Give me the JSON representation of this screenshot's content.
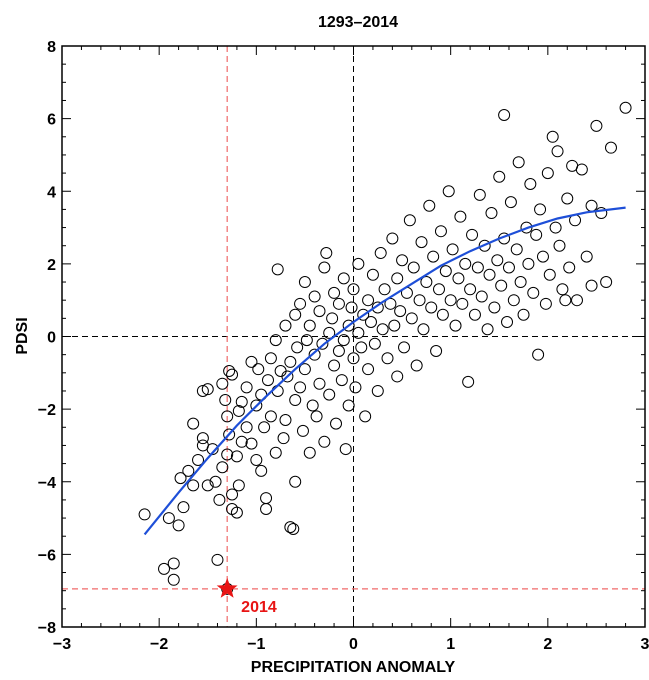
{
  "chart_data": {
    "type": "scatter",
    "title": "1293–2014",
    "xlabel": "PRECIPITATION ANOMALY",
    "ylabel": "PDSI",
    "xlim": [
      -3,
      3
    ],
    "ylim": [
      -8,
      8
    ],
    "x_ticks": [
      "−3",
      "−2",
      "−1",
      "0",
      "1",
      "2",
      "3"
    ],
    "y_ticks": [
      "−8",
      "−6",
      "−4",
      "−2",
      "0",
      "2",
      "4",
      "6",
      "8"
    ],
    "grid": false,
    "marker": "open-circle",
    "series": [
      {
        "points": [
          [
            -2.15,
            -4.9
          ],
          [
            -1.95,
            -6.4
          ],
          [
            -1.85,
            -6.7
          ],
          [
            -1.85,
            -6.25
          ],
          [
            -1.9,
            -5.0
          ],
          [
            -1.8,
            -5.2
          ],
          [
            -1.75,
            -4.7
          ],
          [
            -1.78,
            -3.9
          ],
          [
            -1.7,
            -3.7
          ],
          [
            -1.65,
            -4.1
          ],
          [
            -1.6,
            -3.4
          ],
          [
            -1.65,
            -2.4
          ],
          [
            -1.55,
            -3.0
          ],
          [
            -1.55,
            -2.8
          ],
          [
            -1.5,
            -1.45
          ],
          [
            -1.55,
            -1.5
          ],
          [
            -1.45,
            -3.1
          ],
          [
            -1.5,
            -4.1
          ],
          [
            -1.42,
            -4.0
          ],
          [
            -1.4,
            -6.15
          ],
          [
            -1.3,
            -6.95
          ],
          [
            -1.38,
            -4.5
          ],
          [
            -1.35,
            -3.6
          ],
          [
            -1.3,
            -3.25
          ],
          [
            -1.35,
            -1.3
          ],
          [
            -1.32,
            -1.75
          ],
          [
            -1.28,
            -0.95
          ],
          [
            -1.25,
            -1.05
          ],
          [
            -1.28,
            -2.7
          ],
          [
            -1.3,
            -2.2
          ],
          [
            -1.25,
            -4.35
          ],
          [
            -1.25,
            -4.75
          ],
          [
            -1.2,
            -4.85
          ],
          [
            -1.18,
            -4.1
          ],
          [
            -1.2,
            -3.3
          ],
          [
            -1.15,
            -2.9
          ],
          [
            -1.18,
            -2.05
          ],
          [
            -1.15,
            -1.8
          ],
          [
            -1.1,
            -2.5
          ],
          [
            -1.1,
            -1.4
          ],
          [
            -1.05,
            -0.7
          ],
          [
            -1.05,
            -2.95
          ],
          [
            -1.0,
            -3.4
          ],
          [
            -1.0,
            -1.9
          ],
          [
            -0.98,
            -0.9
          ],
          [
            -0.95,
            -1.6
          ],
          [
            -0.95,
            -3.7
          ],
          [
            -0.9,
            -4.45
          ],
          [
            -0.9,
            -4.75
          ],
          [
            -0.92,
            -2.5
          ],
          [
            -0.88,
            -1.2
          ],
          [
            -0.85,
            -0.6
          ],
          [
            -0.85,
            -2.2
          ],
          [
            -0.8,
            -0.1
          ],
          [
            -0.8,
            -3.2
          ],
          [
            -0.78,
            -1.5
          ],
          [
            -0.78,
            1.85
          ],
          [
            -0.75,
            -0.95
          ],
          [
            -0.72,
            -2.8
          ],
          [
            -0.7,
            -2.3
          ],
          [
            -0.7,
            0.3
          ],
          [
            -0.68,
            -1.1
          ],
          [
            -0.65,
            -0.7
          ],
          [
            -0.65,
            -5.25
          ],
          [
            -0.62,
            -5.3
          ],
          [
            -0.6,
            -4.0
          ],
          [
            -0.6,
            -1.75
          ],
          [
            -0.6,
            0.6
          ],
          [
            -0.58,
            -0.3
          ],
          [
            -0.55,
            0.9
          ],
          [
            -0.55,
            -1.4
          ],
          [
            -0.52,
            -2.6
          ],
          [
            -0.5,
            -0.9
          ],
          [
            -0.5,
            1.5
          ],
          [
            -0.48,
            -0.1
          ],
          [
            -0.45,
            -3.2
          ],
          [
            -0.45,
            0.3
          ],
          [
            -0.42,
            -1.9
          ],
          [
            -0.4,
            -0.5
          ],
          [
            -0.4,
            1.1
          ],
          [
            -0.38,
            -2.2
          ],
          [
            -0.35,
            0.7
          ],
          [
            -0.35,
            -1.3
          ],
          [
            -0.32,
            -0.2
          ],
          [
            -0.3,
            1.9
          ],
          [
            -0.3,
            -2.9
          ],
          [
            -0.28,
            2.3
          ],
          [
            -0.25,
            0.1
          ],
          [
            -0.25,
            -1.6
          ],
          [
            -0.22,
            0.5
          ],
          [
            -0.2,
            -0.8
          ],
          [
            -0.2,
            1.2
          ],
          [
            -0.18,
            -2.4
          ],
          [
            -0.15,
            -0.4
          ],
          [
            -0.15,
            0.9
          ],
          [
            -0.12,
            -1.2
          ],
          [
            -0.1,
            1.6
          ],
          [
            -0.1,
            -0.1
          ],
          [
            -0.08,
            -3.1
          ],
          [
            -0.05,
            0.3
          ],
          [
            -0.05,
            -1.9
          ],
          [
            -0.02,
            0.8
          ],
          [
            0.0,
            -0.6
          ],
          [
            0.0,
            1.3
          ],
          [
            0.02,
            -1.4
          ],
          [
            0.05,
            0.1
          ],
          [
            0.05,
            2.0
          ],
          [
            0.08,
            -0.3
          ],
          [
            0.1,
            0.6
          ],
          [
            0.12,
            -2.2
          ],
          [
            0.15,
            1.0
          ],
          [
            0.15,
            -0.9
          ],
          [
            0.18,
            0.4
          ],
          [
            0.2,
            1.7
          ],
          [
            0.22,
            -0.2
          ],
          [
            0.25,
            0.8
          ],
          [
            0.25,
            -1.5
          ],
          [
            0.28,
            2.3
          ],
          [
            0.3,
            0.2
          ],
          [
            0.32,
            1.3
          ],
          [
            0.35,
            -0.6
          ],
          [
            0.38,
            0.9
          ],
          [
            0.4,
            2.7
          ],
          [
            0.42,
            0.3
          ],
          [
            0.45,
            1.6
          ],
          [
            0.45,
            -1.1
          ],
          [
            0.48,
            0.7
          ],
          [
            0.5,
            2.1
          ],
          [
            0.52,
            -0.3
          ],
          [
            0.55,
            1.2
          ],
          [
            0.58,
            3.2
          ],
          [
            0.6,
            0.5
          ],
          [
            0.62,
            1.9
          ],
          [
            0.65,
            -0.8
          ],
          [
            0.68,
            1.0
          ],
          [
            0.7,
            2.6
          ],
          [
            0.72,
            0.2
          ],
          [
            0.75,
            1.5
          ],
          [
            0.78,
            3.6
          ],
          [
            0.8,
            0.8
          ],
          [
            0.82,
            2.2
          ],
          [
            0.85,
            -0.4
          ],
          [
            0.88,
            1.3
          ],
          [
            0.9,
            2.9
          ],
          [
            0.92,
            0.6
          ],
          [
            0.95,
            1.8
          ],
          [
            0.98,
            4.0
          ],
          [
            1.0,
            1.0
          ],
          [
            1.02,
            2.4
          ],
          [
            1.05,
            0.3
          ],
          [
            1.08,
            1.6
          ],
          [
            1.1,
            3.3
          ],
          [
            1.12,
            0.9
          ],
          [
            1.15,
            2.0
          ],
          [
            1.18,
            -1.25
          ],
          [
            1.2,
            1.3
          ],
          [
            1.22,
            2.8
          ],
          [
            1.25,
            0.6
          ],
          [
            1.28,
            1.9
          ],
          [
            1.3,
            3.9
          ],
          [
            1.32,
            1.1
          ],
          [
            1.35,
            2.5
          ],
          [
            1.38,
            0.2
          ],
          [
            1.4,
            1.7
          ],
          [
            1.42,
            3.4
          ],
          [
            1.45,
            0.8
          ],
          [
            1.48,
            2.1
          ],
          [
            1.5,
            4.4
          ],
          [
            1.52,
            1.4
          ],
          [
            1.55,
            6.1
          ],
          [
            1.55,
            2.7
          ],
          [
            1.58,
            0.4
          ],
          [
            1.6,
            1.9
          ],
          [
            1.62,
            3.7
          ],
          [
            1.65,
            1.0
          ],
          [
            1.68,
            2.4
          ],
          [
            1.7,
            4.8
          ],
          [
            1.72,
            1.5
          ],
          [
            1.75,
            0.6
          ],
          [
            1.78,
            3.0
          ],
          [
            1.8,
            2.0
          ],
          [
            1.82,
            4.2
          ],
          [
            1.85,
            1.2
          ],
          [
            1.88,
            2.8
          ],
          [
            1.9,
            -0.5
          ],
          [
            1.92,
            3.5
          ],
          [
            1.95,
            2.2
          ],
          [
            1.98,
            0.9
          ],
          [
            2.0,
            4.5
          ],
          [
            2.02,
            1.7
          ],
          [
            2.05,
            5.5
          ],
          [
            2.08,
            3.0
          ],
          [
            2.1,
            5.1
          ],
          [
            2.12,
            2.5
          ],
          [
            2.15,
            1.3
          ],
          [
            2.18,
            1.0
          ],
          [
            2.2,
            3.8
          ],
          [
            2.22,
            1.9
          ],
          [
            2.25,
            4.7
          ],
          [
            2.28,
            3.2
          ],
          [
            2.3,
            1.0
          ],
          [
            2.35,
            4.6
          ],
          [
            2.4,
            2.2
          ],
          [
            2.45,
            3.6
          ],
          [
            2.45,
            1.4
          ],
          [
            2.5,
            5.8
          ],
          [
            2.55,
            3.4
          ],
          [
            2.6,
            1.5
          ],
          [
            2.65,
            5.2
          ],
          [
            2.8,
            6.3
          ]
        ]
      },
      {
        "kind": "fit-curve",
        "points": [
          [
            -2.15,
            -5.45
          ],
          [
            -1.8,
            -4.3
          ],
          [
            -1.5,
            -3.35
          ],
          [
            -1.2,
            -2.45
          ],
          [
            -0.9,
            -1.65
          ],
          [
            -0.6,
            -0.9
          ],
          [
            -0.3,
            -0.2
          ],
          [
            0.0,
            0.4
          ],
          [
            0.3,
            0.95
          ],
          [
            0.6,
            1.45
          ],
          [
            0.9,
            1.95
          ],
          [
            1.2,
            2.35
          ],
          [
            1.5,
            2.7
          ],
          [
            1.8,
            3.0
          ],
          [
            2.1,
            3.25
          ],
          [
            2.4,
            3.42
          ],
          [
            2.8,
            3.55
          ]
        ]
      }
    ],
    "colors": {
      "markers": "#000000",
      "fit": "#1e4fd8",
      "reference": "#000000",
      "highlight": "#e81414",
      "highlight_lines": "#f06a6a"
    },
    "reference_lines": {
      "x": 0,
      "y": 0
    },
    "highlight": {
      "label": "2014",
      "x": -1.3,
      "y": -6.95
    }
  }
}
